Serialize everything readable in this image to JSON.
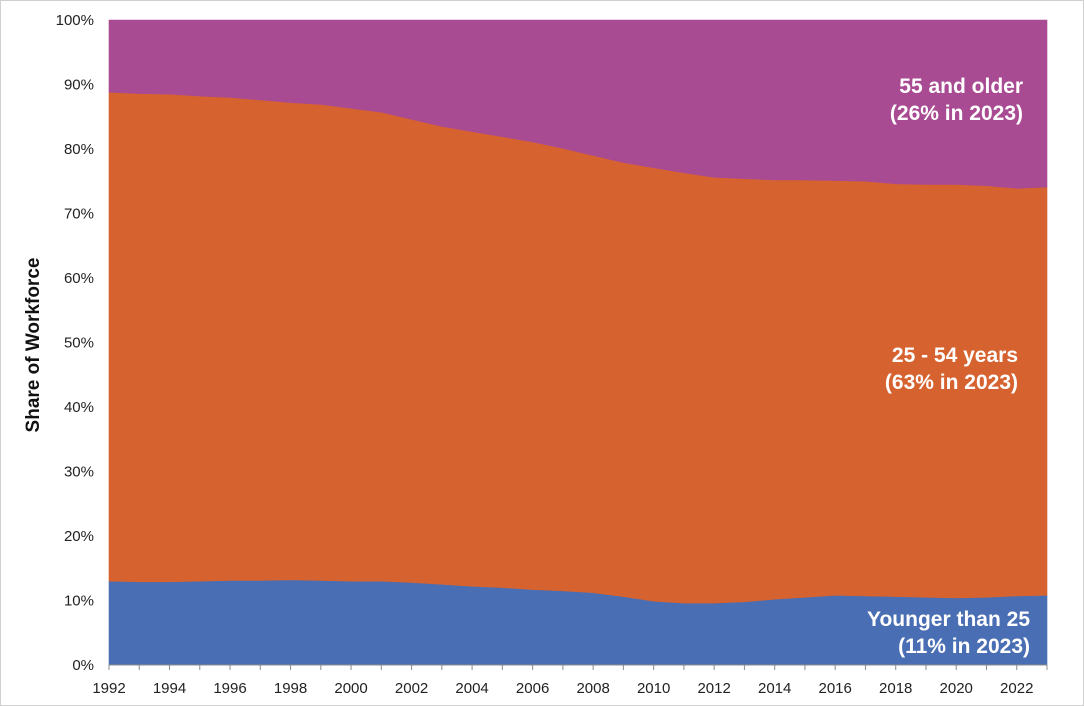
{
  "chart_data": {
    "type": "area",
    "stacked": true,
    "ylabel": "Share of Workforce",
    "xlabel": "",
    "ylim": [
      0,
      100
    ],
    "ytick_labels": [
      "0%",
      "10%",
      "20%",
      "30%",
      "40%",
      "50%",
      "60%",
      "70%",
      "80%",
      "90%",
      "100%"
    ],
    "xtick_labels": [
      "1992",
      "1994",
      "1996",
      "1998",
      "2000",
      "2002",
      "2004",
      "2006",
      "2008",
      "2010",
      "2012",
      "2014",
      "2016",
      "2018",
      "2020",
      "2022"
    ],
    "x": [
      1992,
      1993,
      1994,
      1995,
      1996,
      1997,
      1998,
      1999,
      2000,
      2001,
      2002,
      2003,
      2004,
      2005,
      2006,
      2007,
      2008,
      2009,
      2010,
      2011,
      2012,
      2013,
      2014,
      2015,
      2016,
      2017,
      2018,
      2019,
      2020,
      2021,
      2022,
      2023
    ],
    "series": [
      {
        "name": "Younger than 25",
        "color": "#4a6eb3",
        "values": [
          13.0,
          12.9,
          12.9,
          13.0,
          13.1,
          13.1,
          13.2,
          13.1,
          13.0,
          13.0,
          12.8,
          12.5,
          12.2,
          12.0,
          11.7,
          11.5,
          11.2,
          10.6,
          9.9,
          9.6,
          9.6,
          9.8,
          10.2,
          10.5,
          10.8,
          10.7,
          10.6,
          10.5,
          10.4,
          10.5,
          10.7,
          10.8
        ]
      },
      {
        "name": "25 - 54 years",
        "color": "#d6622f",
        "values": [
          75.8,
          75.7,
          75.6,
          75.2,
          74.9,
          74.5,
          74.0,
          73.8,
          73.3,
          72.7,
          71.8,
          71.0,
          70.5,
          69.9,
          69.4,
          68.6,
          67.8,
          67.3,
          67.2,
          66.7,
          66.0,
          65.6,
          65.0,
          64.7,
          64.3,
          64.3,
          64.0,
          64.0,
          64.1,
          63.8,
          63.2,
          63.3
        ]
      },
      {
        "name": "55 and older",
        "color": "#a94b92",
        "values": [
          11.2,
          11.4,
          11.5,
          11.8,
          12.0,
          12.4,
          12.8,
          13.1,
          13.7,
          14.3,
          15.4,
          16.5,
          17.3,
          18.1,
          18.9,
          19.9,
          21.0,
          22.1,
          22.9,
          23.7,
          24.4,
          24.6,
          24.8,
          24.8,
          24.9,
          25.0,
          25.4,
          25.5,
          25.5,
          25.7,
          26.1,
          25.9
        ]
      }
    ],
    "annotations": {
      "older": {
        "line1": "55 and older",
        "line2": "(26% in 2023)"
      },
      "middle": {
        "line1": "25 - 54 years",
        "line2": "(63% in 2023)"
      },
      "young": {
        "line1": "Younger than 25",
        "line2": "(11% in 2023)"
      }
    }
  }
}
